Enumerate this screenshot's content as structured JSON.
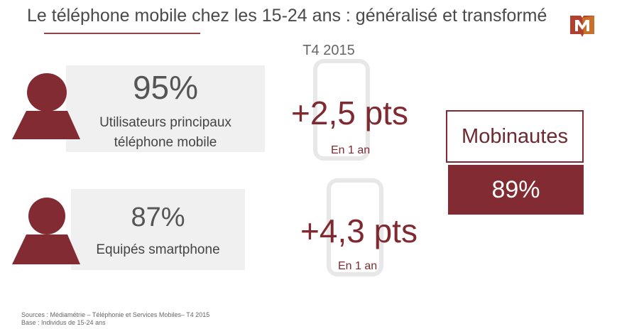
{
  "title": "Le téléphone mobile chez les 15-24 ans : généralisé et transformé",
  "period": "T4 2015",
  "stats": [
    {
      "value": "95%",
      "label_line1": "Utilisateurs principaux",
      "label_line2": "téléphone mobile",
      "change": "+2,5 pts",
      "change_period": "En 1 an"
    },
    {
      "value": "87%",
      "label_line1": "Equipés smartphone",
      "change": "+4,3 pts",
      "change_period": "En 1 an"
    }
  ],
  "mobinautes": {
    "label": "Mobinautes",
    "value": "89%"
  },
  "sources": {
    "line1": "Sources : Médiamétrie – Téléphonie et Services Mobiles– T4 2015",
    "line2": "Base : Individus de 15-24 ans"
  },
  "colors": {
    "accent": "#832b33",
    "text": "#555555",
    "box": "#f0f0f0"
  }
}
